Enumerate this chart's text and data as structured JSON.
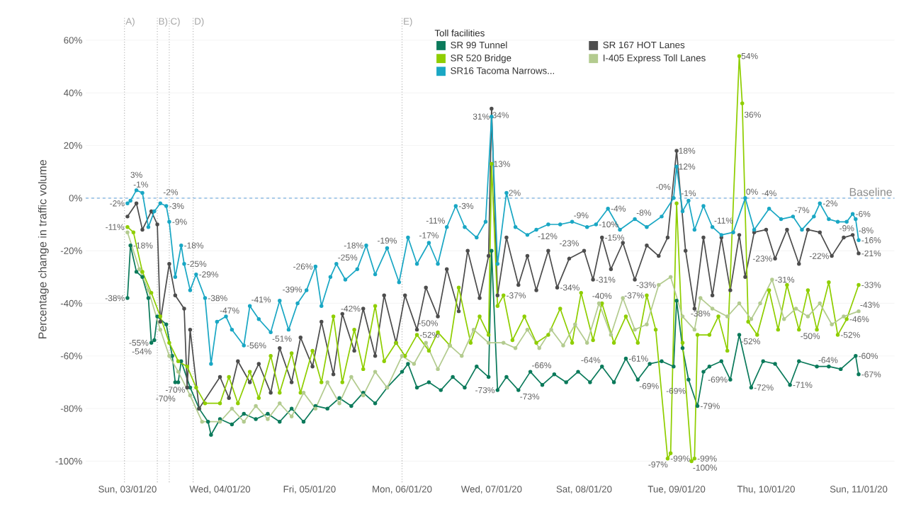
{
  "chart_data": {
    "type": "line",
    "ylabel": "Percentage change in traffic volume",
    "legend_title": "Toll facilities",
    "legend": "top",
    "grid": "y",
    "marker": "circle",
    "line_style": "solid",
    "xlim": [
      "2020-02-16",
      "2020-11-13"
    ],
    "ylim": [
      -108,
      69
    ],
    "xticks": [
      {
        "value": "2020-03-01",
        "label": "Sun, 03/01/20"
      },
      {
        "value": "2020-04-01",
        "label": "Wed, 04/01/20"
      },
      {
        "value": "2020-05-01",
        "label": "Fri, 05/01/20"
      },
      {
        "value": "2020-06-01",
        "label": "Mon, 06/01/20"
      },
      {
        "value": "2020-07-01",
        "label": "Wed, 07/01/20"
      },
      {
        "value": "2020-08-01",
        "label": "Sat, 08/01/20"
      },
      {
        "value": "2020-09-01",
        "label": "Tue, 09/01/20"
      },
      {
        "value": "2020-10-01",
        "label": "Thu, 10/01/20"
      },
      {
        "value": "2020-11-01",
        "label": "Sun, 11/01/20"
      }
    ],
    "yticks": [
      {
        "value": -100,
        "label": "-100%"
      },
      {
        "value": -80,
        "label": "-80%"
      },
      {
        "value": -60,
        "label": "-60%"
      },
      {
        "value": -40,
        "label": "-40%"
      },
      {
        "value": -20,
        "label": "-20%"
      },
      {
        "value": 0,
        "label": "0%"
      },
      {
        "value": 20,
        "label": "20%"
      },
      {
        "value": 40,
        "label": "40%"
      },
      {
        "value": 60,
        "label": "60%"
      }
    ],
    "ref_lines": [
      {
        "axis": "x",
        "value": "2020-02-29",
        "label": "A)",
        "color": "#a6a6a6",
        "line_style": "dotted"
      },
      {
        "axis": "x",
        "value": "2020-03-11",
        "label": "B)",
        "color": "#a6a6a6",
        "line_style": "dotted"
      },
      {
        "axis": "x",
        "value": "2020-03-15",
        "label": "C)",
        "color": "#a6a6a6",
        "line_style": "dotted"
      },
      {
        "axis": "x",
        "value": "2020-03-23",
        "label": "D)",
        "color": "#a6a6a6",
        "line_style": "dotted"
      },
      {
        "axis": "x",
        "value": "2020-06-01",
        "label": "E)",
        "color": "#a6a6a6",
        "line_style": "dotted"
      },
      {
        "axis": "y",
        "value": 0,
        "label": "Baseline",
        "color": "#9dc3e6",
        "line_style": "dashed"
      }
    ],
    "series": [
      {
        "name": "SR 99 Tunnel",
        "color": "#0b7a5b",
        "x": [
          "2020-03-01",
          "2020-03-02",
          "2020-03-04",
          "2020-03-06",
          "2020-03-08",
          "2020-03-09",
          "2020-03-10",
          "2020-03-11",
          "2020-03-14",
          "2020-03-16",
          "2020-03-17",
          "2020-03-18",
          "2020-03-19",
          "2020-03-22",
          "2020-03-25",
          "2020-03-28",
          "2020-03-29",
          "2020-04-01",
          "2020-04-05",
          "2020-04-09",
          "2020-04-13",
          "2020-04-17",
          "2020-04-21",
          "2020-04-25",
          "2020-04-29",
          "2020-05-03",
          "2020-05-07",
          "2020-05-11",
          "2020-05-15",
          "2020-05-19",
          "2020-05-23",
          "2020-05-27",
          "2020-06-01",
          "2020-06-03",
          "2020-06-06",
          "2020-06-10",
          "2020-06-14",
          "2020-06-18",
          "2020-06-22",
          "2020-06-26",
          "2020-06-30",
          "2020-07-01",
          "2020-07-03",
          "2020-07-06",
          "2020-07-10",
          "2020-07-14",
          "2020-07-18",
          "2020-07-22",
          "2020-07-26",
          "2020-07-30",
          "2020-08-03",
          "2020-08-07",
          "2020-08-11",
          "2020-08-15",
          "2020-08-19",
          "2020-08-23",
          "2020-08-27",
          "2020-08-31",
          "2020-09-01",
          "2020-09-03",
          "2020-09-05",
          "2020-09-08",
          "2020-09-10",
          "2020-09-12",
          "2020-09-16",
          "2020-09-19",
          "2020-09-22",
          "2020-09-26",
          "2020-09-30",
          "2020-10-04",
          "2020-10-09",
          "2020-10-12",
          "2020-10-18",
          "2020-10-22",
          "2020-10-26",
          "2020-10-31",
          "2020-11-01"
        ],
        "values": [
          -38,
          -18,
          -28,
          -30,
          -38,
          -55,
          -54,
          -45,
          -48,
          -60,
          -70,
          -70,
          -62,
          -72,
          -80,
          -85,
          -90,
          -84,
          -86,
          -82,
          -84,
          -82,
          -85,
          -80,
          -85,
          -79,
          -80,
          -76,
          -79,
          -74,
          -78,
          -72,
          -66,
          -63,
          -72,
          -70,
          -73,
          -68,
          -72,
          -64,
          -68,
          -20,
          -73,
          -68,
          -73,
          -66,
          -71,
          -67,
          -70,
          -66,
          -70,
          -64,
          -70,
          -61,
          -69,
          -63,
          -62,
          -64,
          -39,
          -57,
          -69,
          -79,
          -66,
          -64,
          -62,
          -69,
          -52,
          -72,
          -62,
          -63,
          -71,
          -62,
          -64,
          -64,
          -65,
          -60,
          -67
        ],
        "value_labels": [
          "-38%",
          "-18%",
          null,
          null,
          null,
          "-55%",
          "-54%",
          null,
          null,
          null,
          "-70%",
          "-70%",
          null,
          null,
          null,
          null,
          null,
          null,
          null,
          null,
          null,
          null,
          null,
          null,
          null,
          null,
          null,
          null,
          null,
          null,
          null,
          null,
          null,
          null,
          null,
          null,
          null,
          null,
          null,
          null,
          null,
          null,
          "-73%",
          null,
          "-73%",
          "-66%",
          null,
          null,
          null,
          null,
          null,
          "-64%",
          null,
          "-61%",
          "-69%",
          null,
          null,
          null,
          null,
          null,
          "-69%",
          "-79%",
          null,
          null,
          null,
          "-69%",
          "-52%",
          "-72%",
          null,
          null,
          "-71%",
          null,
          "-64%",
          null,
          null,
          "-60%",
          "-67%"
        ]
      },
      {
        "name": "SR 167 HOT Lanes",
        "color": "#4d4d4d",
        "x": [
          "2020-03-01",
          "2020-03-04",
          "2020-03-06",
          "2020-03-09",
          "2020-03-11",
          "2020-03-12",
          "2020-03-15",
          "2020-03-17",
          "2020-03-20",
          "2020-03-21",
          "2020-03-22",
          "2020-03-25",
          "2020-04-01",
          "2020-04-04",
          "2020-04-07",
          "2020-04-11",
          "2020-04-14",
          "2020-04-18",
          "2020-04-21",
          "2020-04-25",
          "2020-04-28",
          "2020-05-02",
          "2020-05-05",
          "2020-05-09",
          "2020-05-12",
          "2020-05-16",
          "2020-05-19",
          "2020-05-23",
          "2020-05-26",
          "2020-05-30",
          "2020-06-02",
          "2020-06-06",
          "2020-06-09",
          "2020-06-13",
          "2020-06-16",
          "2020-06-20",
          "2020-06-23",
          "2020-06-27",
          "2020-06-30",
          "2020-07-01",
          "2020-07-03",
          "2020-07-06",
          "2020-07-10",
          "2020-07-13",
          "2020-07-16",
          "2020-07-20",
          "2020-07-23",
          "2020-07-27",
          "2020-08-01",
          "2020-08-04",
          "2020-08-07",
          "2020-08-10",
          "2020-08-14",
          "2020-08-18",
          "2020-08-22",
          "2020-08-26",
          "2020-08-29",
          "2020-09-01",
          "2020-09-04",
          "2020-09-07",
          "2020-09-10",
          "2020-09-13",
          "2020-09-16",
          "2020-09-19",
          "2020-09-22",
          "2020-09-24",
          "2020-09-27",
          "2020-10-01",
          "2020-10-04",
          "2020-10-08",
          "2020-10-12",
          "2020-10-15",
          "2020-10-19",
          "2020-10-23",
          "2020-10-27",
          "2020-10-30",
          "2020-11-01"
        ],
        "values": [
          -7,
          -2,
          -12,
          -5,
          -10,
          -47,
          -25,
          -37,
          -42,
          -72,
          -50,
          -80,
          -68,
          -76,
          -62,
          -70,
          -63,
          -74,
          -57,
          -70,
          -53,
          -64,
          -47,
          -67,
          -44,
          -58,
          -42,
          -60,
          -37,
          -55,
          -37,
          -50,
          -34,
          -45,
          -27,
          -43,
          -20,
          -38,
          -22,
          34,
          -37,
          -15,
          -33,
          -22,
          -35,
          -20,
          -34,
          -23,
          -20,
          -31,
          -15,
          -27,
          -17,
          -31,
          -18,
          -22,
          -15,
          18,
          -20,
          -42,
          -15,
          -37,
          -15,
          -35,
          -14,
          -30,
          -13,
          -12,
          -23,
          -12,
          -25,
          -12,
          -13,
          -22,
          -15,
          -14,
          -21
        ],
        "value_labels": [
          null,
          null,
          null,
          null,
          null,
          null,
          null,
          null,
          null,
          null,
          null,
          null,
          null,
          null,
          null,
          null,
          null,
          null,
          null,
          null,
          null,
          null,
          null,
          null,
          null,
          null,
          "-42%",
          null,
          null,
          null,
          null,
          "-50%",
          null,
          null,
          null,
          null,
          null,
          null,
          null,
          "34%",
          null,
          null,
          null,
          null,
          null,
          null,
          "-34%",
          "-23%",
          null,
          "-31%",
          "-15%",
          null,
          null,
          null,
          null,
          null,
          null,
          "18%",
          null,
          null,
          null,
          null,
          null,
          null,
          null,
          null,
          null,
          null,
          "-23%",
          null,
          null,
          null,
          null,
          "-22%",
          null,
          null,
          "-21%"
        ]
      },
      {
        "name": "SR 520 Bridge",
        "color": "#8fce00",
        "x": [
          "2020-03-01",
          "2020-03-03",
          "2020-03-06",
          "2020-03-09",
          "2020-03-12",
          "2020-03-15",
          "2020-03-18",
          "2020-03-21",
          "2020-03-24",
          "2020-03-27",
          "2020-04-01",
          "2020-04-04",
          "2020-04-07",
          "2020-04-11",
          "2020-04-14",
          "2020-04-18",
          "2020-04-21",
          "2020-04-25",
          "2020-04-28",
          "2020-05-02",
          "2020-05-05",
          "2020-05-09",
          "2020-05-12",
          "2020-05-16",
          "2020-05-19",
          "2020-05-23",
          "2020-05-26",
          "2020-05-30",
          "2020-06-02",
          "2020-06-06",
          "2020-06-10",
          "2020-06-13",
          "2020-06-17",
          "2020-06-20",
          "2020-06-24",
          "2020-06-27",
          "2020-06-30",
          "2020-07-01",
          "2020-07-03",
          "2020-07-05",
          "2020-07-08",
          "2020-07-12",
          "2020-07-16",
          "2020-07-20",
          "2020-07-24",
          "2020-07-28",
          "2020-07-31",
          "2020-08-04",
          "2020-08-07",
          "2020-08-11",
          "2020-08-15",
          "2020-08-19",
          "2020-08-22",
          "2020-08-25",
          "2020-08-29",
          "2020-08-30",
          "2020-09-01",
          "2020-09-03",
          "2020-09-06",
          "2020-09-07",
          "2020-09-08",
          "2020-09-12",
          "2020-09-15",
          "2020-09-18",
          "2020-09-22",
          "2020-09-23",
          "2020-09-25",
          "2020-09-28",
          "2020-10-02",
          "2020-10-05",
          "2020-10-08",
          "2020-10-12",
          "2020-10-15",
          "2020-10-18",
          "2020-10-22",
          "2020-10-25",
          "2020-10-28",
          "2020-11-01"
        ],
        "values": [
          -11,
          -13,
          -28,
          -36,
          -45,
          -55,
          -62,
          -64,
          -72,
          -78,
          -78,
          -68,
          -78,
          -66,
          -76,
          -60,
          -74,
          -59,
          -74,
          -58,
          -70,
          -45,
          -70,
          -50,
          -65,
          -41,
          -62,
          -55,
          -60,
          -52,
          -58,
          -51,
          -56,
          -34,
          -55,
          -45,
          -52,
          13,
          -41,
          -37,
          -54,
          -45,
          -55,
          -52,
          -42,
          -55,
          -36,
          -54,
          -40,
          -55,
          -45,
          -55,
          -37,
          -50,
          -99,
          -97,
          -2,
          -55,
          -100,
          -99,
          -52,
          -52,
          -45,
          -58,
          54,
          36,
          -47,
          -52,
          -35,
          -50,
          -33,
          -50,
          -35,
          -50,
          -32,
          -52,
          -46,
          -33
        ],
        "value_labels": [
          "-11%",
          null,
          null,
          null,
          null,
          null,
          null,
          null,
          null,
          null,
          null,
          null,
          null,
          null,
          null,
          null,
          null,
          null,
          null,
          null,
          null,
          null,
          null,
          null,
          null,
          null,
          null,
          null,
          null,
          "-52%",
          null,
          null,
          null,
          null,
          null,
          null,
          null,
          "13%",
          null,
          "-37%",
          null,
          null,
          null,
          null,
          null,
          null,
          null,
          null,
          "-40%",
          null,
          null,
          null,
          "-37%",
          null,
          "-99%",
          "-97%",
          null,
          null,
          "-100%",
          "-99%",
          null,
          null,
          null,
          null,
          "54%",
          "36%",
          null,
          null,
          null,
          null,
          null,
          "-50%",
          null,
          null,
          null,
          "-52%",
          "-46%",
          "-33%"
        ]
      },
      {
        "name": "I-405 Express Toll Lanes",
        "color": "#b3cb8f",
        "x": [
          "2020-03-01",
          "2020-03-05",
          "2020-03-08",
          "2020-03-12",
          "2020-03-15",
          "2020-03-18",
          "2020-03-22",
          "2020-03-26",
          "2020-04-01",
          "2020-04-05",
          "2020-04-09",
          "2020-04-13",
          "2020-04-17",
          "2020-04-21",
          "2020-04-25",
          "2020-04-29",
          "2020-05-03",
          "2020-05-07",
          "2020-05-11",
          "2020-05-15",
          "2020-05-19",
          "2020-05-23",
          "2020-05-27",
          "2020-06-01",
          "2020-06-05",
          "2020-06-09",
          "2020-06-13",
          "2020-06-17",
          "2020-06-21",
          "2020-06-25",
          "2020-06-30",
          "2020-07-05",
          "2020-07-09",
          "2020-07-13",
          "2020-07-17",
          "2020-07-21",
          "2020-07-25",
          "2020-07-29",
          "2020-08-02",
          "2020-08-06",
          "2020-08-10",
          "2020-08-14",
          "2020-08-18",
          "2020-08-22",
          "2020-08-26",
          "2020-08-30",
          "2020-09-03",
          "2020-09-07",
          "2020-09-09",
          "2020-09-13",
          "2020-09-18",
          "2020-09-22",
          "2020-09-26",
          "2020-09-29",
          "2020-10-03",
          "2020-10-07",
          "2020-10-11",
          "2020-10-15",
          "2020-10-19",
          "2020-10-23",
          "2020-10-27",
          "2020-11-01"
        ],
        "values": [
          -13,
          -27,
          -35,
          -50,
          -60,
          -66,
          -75,
          -85,
          -85,
          -80,
          -85,
          -79,
          -84,
          -78,
          -83,
          -74,
          -80,
          -70,
          -78,
          -68,
          -75,
          -66,
          -72,
          -60,
          -63,
          -55,
          -65,
          -56,
          -60,
          -50,
          -55,
          -55,
          -57,
          -50,
          -57,
          -50,
          -56,
          -48,
          -55,
          -40,
          -52,
          -38,
          -50,
          -48,
          -33,
          -30,
          -45,
          -50,
          -38,
          -42,
          -45,
          -40,
          -46,
          -40,
          -31,
          -46,
          -42,
          -45,
          -40,
          -48,
          -45,
          -43
        ],
        "value_labels": [
          null,
          null,
          null,
          null,
          null,
          null,
          null,
          null,
          null,
          null,
          null,
          null,
          null,
          null,
          null,
          null,
          null,
          null,
          null,
          null,
          null,
          null,
          null,
          null,
          null,
          null,
          null,
          null,
          null,
          null,
          null,
          null,
          null,
          null,
          null,
          null,
          null,
          null,
          null,
          null,
          null,
          null,
          null,
          null,
          "-33%",
          null,
          null,
          null,
          "-38%",
          null,
          null,
          null,
          null,
          null,
          "-31%",
          null,
          null,
          null,
          null,
          null,
          null,
          "-43%"
        ]
      },
      {
        "name": "SR16 Tacoma Narrows...",
        "color": "#1aa7c4",
        "x": [
          "2020-03-01",
          "2020-03-02",
          "2020-03-04",
          "2020-03-06",
          "2020-03-08",
          "2020-03-10",
          "2020-03-12",
          "2020-03-14",
          "2020-03-15",
          "2020-03-17",
          "2020-03-19",
          "2020-03-20",
          "2020-03-22",
          "2020-03-24",
          "2020-03-27",
          "2020-03-29",
          "2020-03-31",
          "2020-04-03",
          "2020-04-05",
          "2020-04-09",
          "2020-04-11",
          "2020-04-14",
          "2020-04-18",
          "2020-04-21",
          "2020-04-24",
          "2020-04-27",
          "2020-04-30",
          "2020-05-03",
          "2020-05-05",
          "2020-05-08",
          "2020-05-10",
          "2020-05-13",
          "2020-05-17",
          "2020-05-20",
          "2020-05-23",
          "2020-05-27",
          "2020-05-31",
          "2020-06-03",
          "2020-06-06",
          "2020-06-10",
          "2020-06-13",
          "2020-06-16",
          "2020-06-19",
          "2020-06-22",
          "2020-06-26",
          "2020-06-29",
          "2020-07-01",
          "2020-07-03",
          "2020-07-06",
          "2020-07-09",
          "2020-07-13",
          "2020-07-16",
          "2020-07-20",
          "2020-07-24",
          "2020-07-28",
          "2020-08-02",
          "2020-08-05",
          "2020-08-09",
          "2020-08-13",
          "2020-08-18",
          "2020-08-22",
          "2020-08-27",
          "2020-08-31",
          "2020-09-01",
          "2020-09-03",
          "2020-09-05",
          "2020-09-07",
          "2020-09-10",
          "2020-09-13",
          "2020-09-16",
          "2020-09-20",
          "2020-09-24",
          "2020-09-27",
          "2020-10-02",
          "2020-10-06",
          "2020-10-10",
          "2020-10-13",
          "2020-10-17",
          "2020-10-19",
          "2020-10-22",
          "2020-10-25",
          "2020-10-28",
          "2020-10-30",
          "2020-10-31",
          "2020-11-01"
        ],
        "values": [
          -2,
          -1,
          3,
          2,
          -11,
          -5,
          -2,
          -3,
          -9,
          -30,
          -18,
          -25,
          -35,
          -29,
          -38,
          -63,
          -47,
          -45,
          -50,
          -56,
          -41,
          -46,
          -51,
          -39,
          -50,
          -40,
          -35,
          -26,
          -41,
          -30,
          -25,
          -31,
          -27,
          -18,
          -29,
          -19,
          -32,
          -15,
          -25,
          -17,
          -25,
          -11,
          -3,
          -11,
          -15,
          -9,
          31,
          -25,
          2,
          -11,
          -14,
          -12,
          -10,
          -10,
          -9,
          -11,
          -10,
          -4,
          -12,
          -8,
          -11,
          -7,
          0,
          12,
          -5,
          -1,
          -12,
          -3,
          -11,
          -14,
          -13,
          0,
          -12,
          -4,
          -8,
          -7,
          -12,
          -7,
          -2,
          -8,
          -9,
          -9,
          -6,
          -8,
          -16
        ],
        "value_labels": [
          "-2%",
          "-1%",
          "3%",
          null,
          null,
          null,
          "-2%",
          "-3%",
          "-9%",
          null,
          "-18%",
          "-25%",
          null,
          "-29%",
          "-38%",
          null,
          "-47%",
          null,
          null,
          "-56%",
          "-41%",
          null,
          "-51%",
          "-39%",
          null,
          null,
          null,
          "-26%",
          null,
          null,
          "-25%",
          null,
          null,
          "-18%",
          null,
          "-19%",
          null,
          null,
          null,
          "-17%",
          null,
          "-11%",
          "-3%",
          null,
          null,
          null,
          "31%",
          null,
          "2%",
          null,
          null,
          "-12%",
          null,
          null,
          "-9%",
          null,
          "-10%",
          "-4%",
          null,
          "-8%",
          null,
          null,
          "-0%",
          "12%",
          null,
          "-1%",
          null,
          null,
          "-11%",
          null,
          null,
          "0%",
          null,
          "-4%",
          null,
          "-7%",
          null,
          null,
          "-2%",
          null,
          "-9%",
          null,
          "-6%",
          "-8%",
          "-16%"
        ]
      }
    ]
  }
}
